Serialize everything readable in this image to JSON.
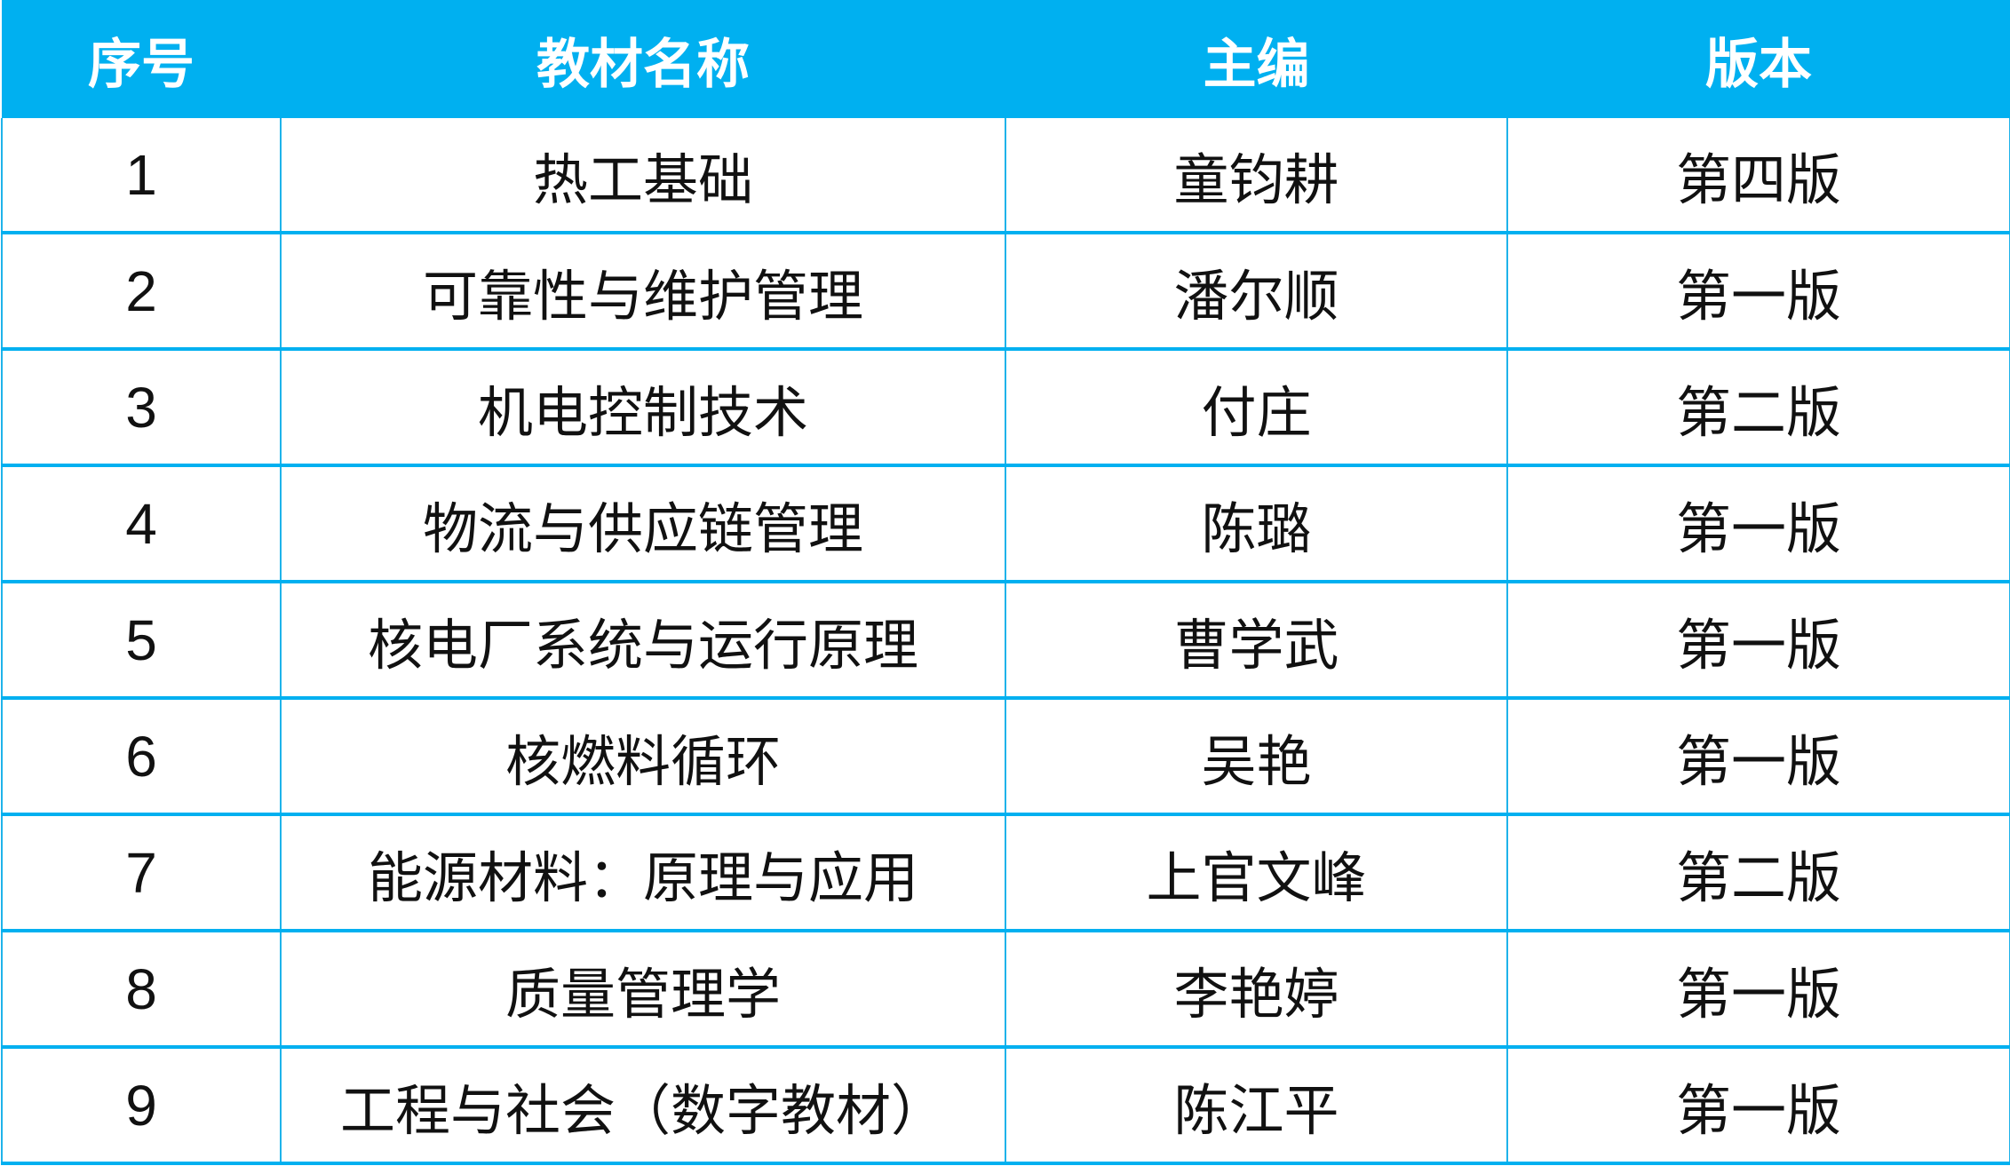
{
  "table": {
    "header_color": "#00B0F0",
    "headers": [
      "序号",
      "教材名称",
      "主编",
      "版本"
    ],
    "rows": [
      [
        "1",
        "热工基础",
        "童钧耕",
        "第四版"
      ],
      [
        "2",
        "可靠性与维护管理",
        "潘尔顺",
        "第一版"
      ],
      [
        "3",
        "机电控制技术",
        "付庄",
        "第二版"
      ],
      [
        "4",
        "物流与供应链管理",
        "陈璐",
        "第一版"
      ],
      [
        "5",
        "核电厂系统与运行原理",
        "曹学武",
        "第一版"
      ],
      [
        "6",
        "核燃料循环",
        "吴艳",
        "第一版"
      ],
      [
        "7",
        "能源材料：原理与应用",
        "上官文峰",
        "第二版"
      ],
      [
        "8",
        "质量管理学",
        "李艳婷",
        "第一版"
      ],
      [
        "9",
        "工程与社会（数字教材）",
        "陈江平",
        "第一版"
      ]
    ]
  }
}
